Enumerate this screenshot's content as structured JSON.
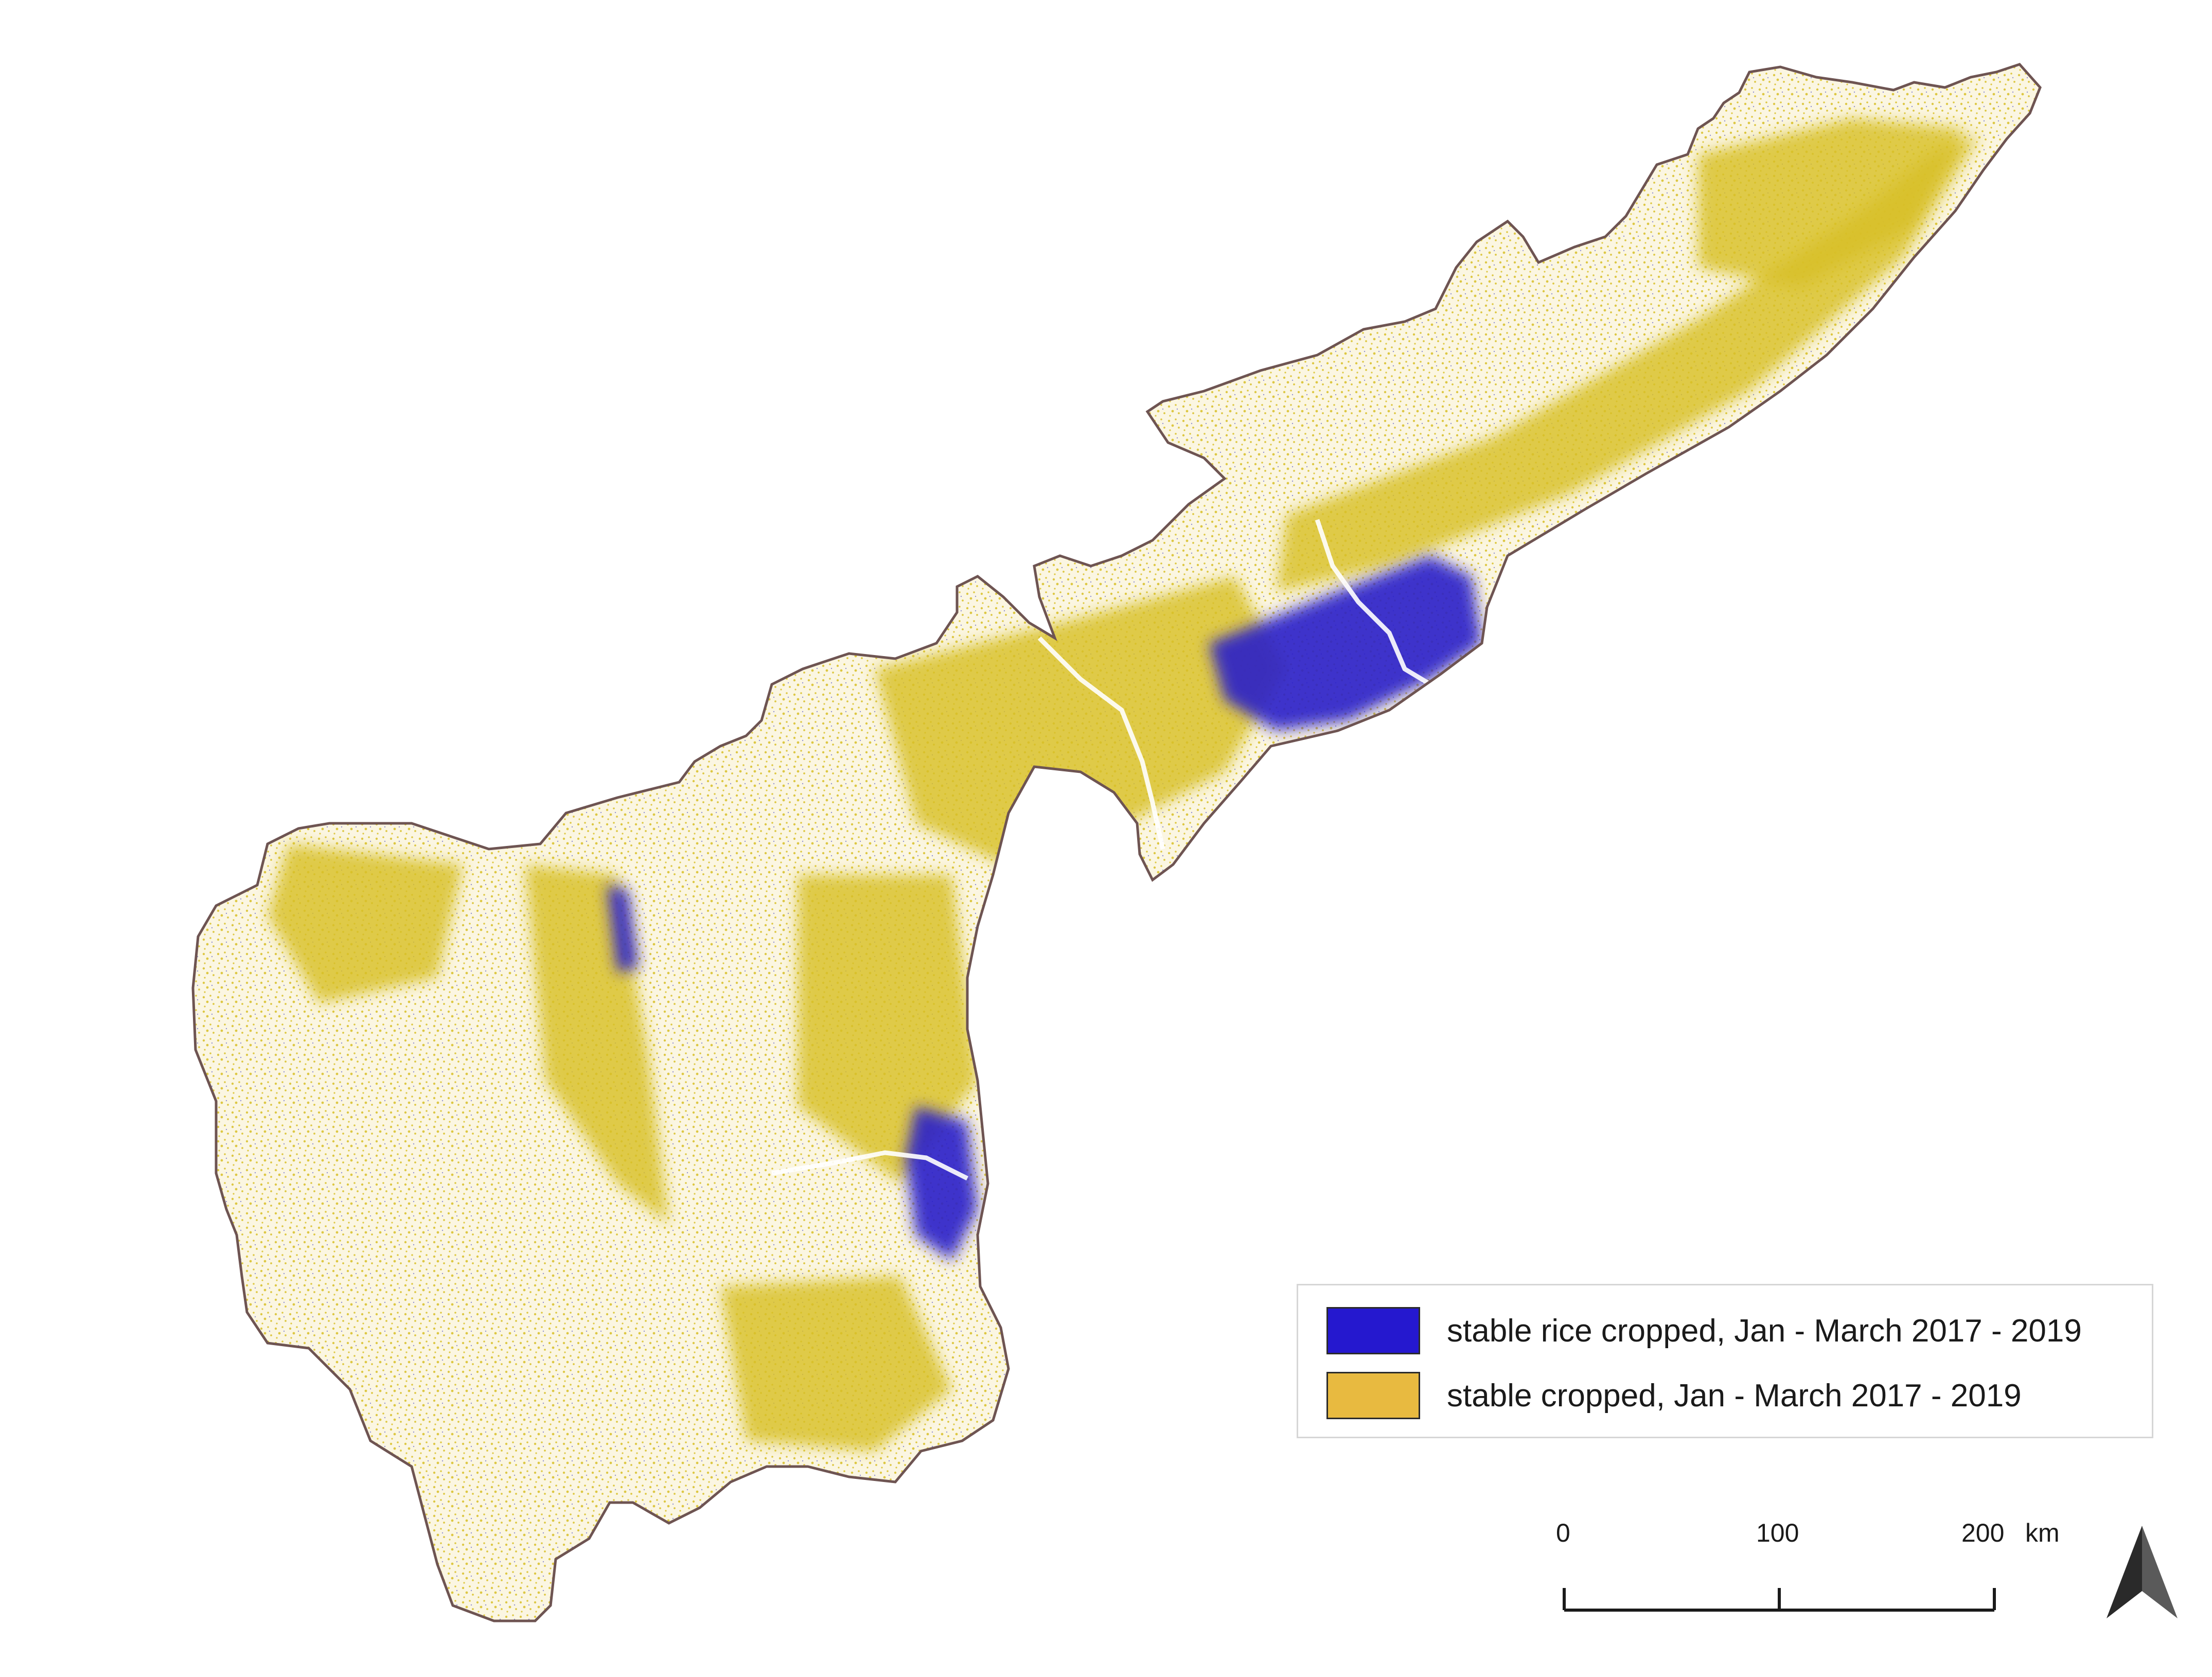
{
  "map": {
    "colors": {
      "outline": "#6e5452",
      "base": "#fbf6e2",
      "crop": "#d8bf27",
      "rice": "#2a1fc9",
      "north_arrow": "#2a2a2a"
    },
    "icons": {
      "north": "north-arrow-icon"
    }
  },
  "legend": {
    "items": [
      {
        "label": "stable rice cropped, Jan - March 2017 - 2019",
        "color": "#2518cf"
      },
      {
        "label": "stable cropped, Jan - March 2017 - 2019",
        "color": "#e8ba40"
      }
    ]
  },
  "scale_bar": {
    "ticks": [
      "0",
      "100",
      "200"
    ],
    "unit": "km"
  }
}
